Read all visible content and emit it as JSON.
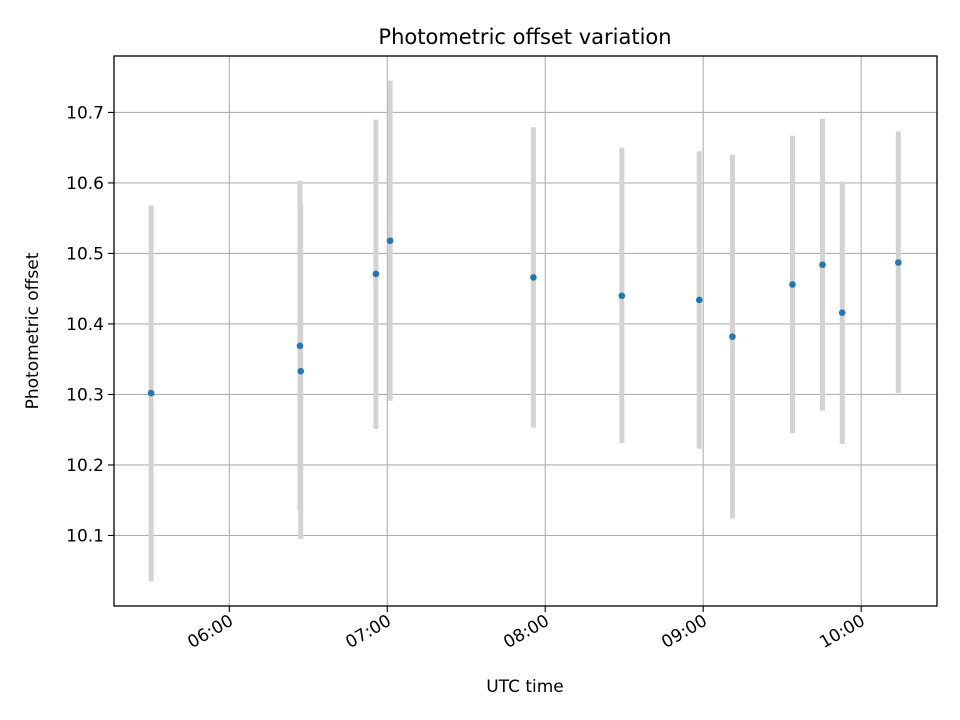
{
  "chart_data": {
    "type": "scatter",
    "title": "Photometric offset variation",
    "xlabel": "UTC time",
    "ylabel": "Photometric offset",
    "x_tick_labels": [
      "06:00",
      "07:00",
      "08:00",
      "09:00",
      "10:00"
    ],
    "x_ticks_hours": [
      6,
      7,
      8,
      9,
      10
    ],
    "y_ticks": [
      10.1,
      10.2,
      10.3,
      10.4,
      10.5,
      10.6,
      10.7
    ],
    "xlim_hours": [
      5.27,
      10.48
    ],
    "ylim": [
      10.0,
      10.78
    ],
    "grid": true,
    "colors": {
      "point": "#1f77b4",
      "errorbar": "#d3d3d3",
      "grid": "#b0b0b0"
    },
    "points": [
      {
        "time": "05:30",
        "hour": 5.505,
        "y": 10.302,
        "low": 10.035,
        "high": 10.568
      },
      {
        "time": "06:27",
        "hour": 6.447,
        "y": 10.369,
        "low": 10.135,
        "high": 10.603
      },
      {
        "time": "06:27",
        "hour": 6.452,
        "y": 10.333,
        "low": 10.095,
        "high": 10.571
      },
      {
        "time": "06:55",
        "hour": 6.928,
        "y": 10.471,
        "low": 10.251,
        "high": 10.69
      },
      {
        "time": "07:01",
        "hour": 7.018,
        "y": 10.518,
        "low": 10.291,
        "high": 10.745
      },
      {
        "time": "07:55",
        "hour": 7.925,
        "y": 10.466,
        "low": 10.253,
        "high": 10.679
      },
      {
        "time": "08:29",
        "hour": 8.485,
        "y": 10.44,
        "low": 10.231,
        "high": 10.65
      },
      {
        "time": "08:58",
        "hour": 8.975,
        "y": 10.434,
        "low": 10.223,
        "high": 10.645
      },
      {
        "time": "09:11",
        "hour": 9.185,
        "y": 10.382,
        "low": 10.124,
        "high": 10.64
      },
      {
        "time": "09:34",
        "hour": 9.565,
        "y": 10.456,
        "low": 10.245,
        "high": 10.667
      },
      {
        "time": "09:45",
        "hour": 9.755,
        "y": 10.484,
        "low": 10.277,
        "high": 10.691
      },
      {
        "time": "09:53",
        "hour": 9.88,
        "y": 10.416,
        "low": 10.23,
        "high": 10.602
      },
      {
        "time": "10:14",
        "hour": 10.235,
        "y": 10.487,
        "low": 10.302,
        "high": 10.673
      }
    ]
  }
}
